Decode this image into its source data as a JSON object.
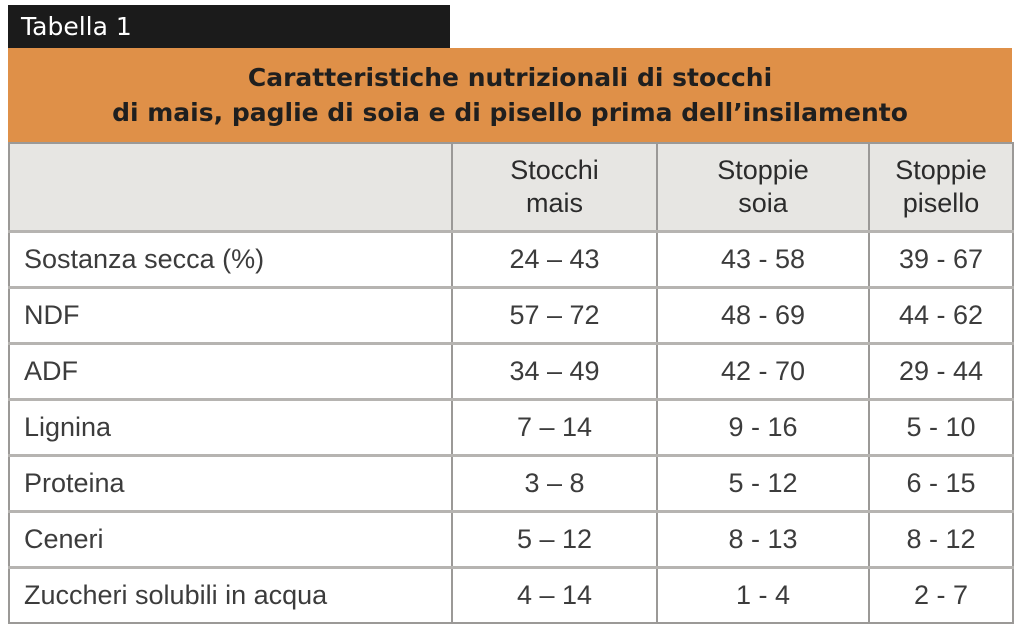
{
  "header": {
    "tag": "Tabella 1",
    "title_line1": "Caratteristiche nutrizionali di stocchi",
    "title_line2": "di mais, paglie di soia e di pisello prima dell’insilamento"
  },
  "colors": {
    "tag_black": "#1b1b1b",
    "accent_orange": "#df9048",
    "header_gray": "#e7e6e3",
    "grid_gray": "#9b9997",
    "row_divider_gray": "#b6b4b1",
    "text_dark": "#3c3c3c"
  },
  "table": {
    "columns": [
      {
        "line1": "Stocchi",
        "line2": "mais"
      },
      {
        "line1": "Stoppie",
        "line2": "soia"
      },
      {
        "line1": "Stoppie",
        "line2": "pisello"
      }
    ],
    "rows": [
      {
        "label": "Sostanza secca (%)",
        "values": [
          "24 – 43",
          "43 - 58",
          "39 - 67"
        ]
      },
      {
        "label": "NDF",
        "values": [
          "57 – 72",
          "48 - 69",
          "44 - 62"
        ]
      },
      {
        "label": "ADF",
        "values": [
          "34 – 49",
          "42 - 70",
          "29 - 44"
        ]
      },
      {
        "label": "Lignina",
        "values": [
          "7 – 14",
          "9 - 16",
          "5 - 10"
        ]
      },
      {
        "label": "Proteina",
        "values": [
          "3 – 8",
          "5 - 12",
          "6 - 15"
        ]
      },
      {
        "label": "Ceneri",
        "values": [
          "5 – 12",
          "8 - 13",
          "8 - 12"
        ]
      },
      {
        "label": "Zuccheri solubili in acqua",
        "values": [
          "4 – 14",
          "1 - 4",
          "2 - 7"
        ]
      }
    ]
  },
  "chart_data": {
    "type": "table",
    "title": "Caratteristiche nutrizionali di stocchi di mais, paglie di soia e di pisello prima dell’insilamento",
    "columns": [
      "",
      "Stocchi mais",
      "Stoppie soia",
      "Stoppie pisello"
    ],
    "rows": [
      [
        "Sostanza secca (%)",
        "24 – 43",
        "43 - 58",
        "39 - 67"
      ],
      [
        "NDF",
        "57 – 72",
        "48 - 69",
        "44 - 62"
      ],
      [
        "ADF",
        "34 – 49",
        "42 - 70",
        "29 - 44"
      ],
      [
        "Lignina",
        "7 – 14",
        "9 - 16",
        "5 - 10"
      ],
      [
        "Proteina",
        "3 – 8",
        "5 - 12",
        "6 - 15"
      ],
      [
        "Ceneri",
        "5 – 12",
        "8 - 13",
        "8 - 12"
      ],
      [
        "Zuccheri solubili in acqua",
        "4 – 14",
        "1 - 4",
        "2 - 7"
      ]
    ]
  }
}
